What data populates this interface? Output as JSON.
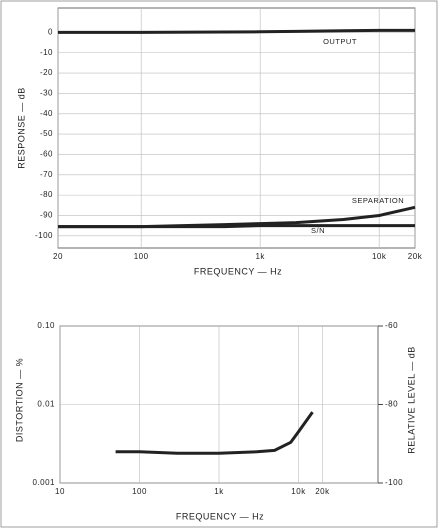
{
  "chart_data": [
    {
      "type": "line",
      "x_label": "FREQUENCY — Hz",
      "y_label": "RESPONSE — dB",
      "x_log": true,
      "xlim": [
        20,
        20000
      ],
      "xticks": [
        20,
        100,
        {
          "value": 1000,
          "label": "1k"
        },
        {
          "value": 10000,
          "label": "10k"
        },
        {
          "value": 20000,
          "label": "20k"
        }
      ],
      "ylim": [
        -106,
        12
      ],
      "yticks": [
        0,
        -10,
        -20,
        -30,
        -40,
        -50,
        -60,
        -70,
        -80,
        -90,
        -100
      ],
      "grid": true,
      "annotations": [
        "OUTPUT",
        "SEPARATION",
        "S/N"
      ],
      "x": [
        20,
        100,
        500,
        1000,
        2000,
        5000,
        10000,
        20000
      ],
      "series": [
        {
          "color": "#222222",
          "values": [
            0,
            0,
            0.2,
            0.3,
            0.5,
            0.8,
            1,
            1
          ]
        },
        {
          "color": "#222222",
          "values": [
            -95.5,
            -95.5,
            -94.5,
            -94,
            -93.5,
            -92,
            -90,
            -86
          ]
        },
        {
          "color": "#222222",
          "values": [
            -95.5,
            -95.5,
            -95.5,
            -95,
            -95,
            -95,
            -95,
            -95
          ]
        }
      ]
    },
    {
      "type": "line",
      "x_label": "FREQUENCY — Hz",
      "y_label": "DISTORTION — %",
      "y2_label": "RELATIVE LEVEL — dB",
      "x_log": true,
      "y_log": true,
      "xlim": [
        10,
        100000
      ],
      "xticks": [
        10,
        100,
        {
          "value": 1000,
          "label": "1k"
        },
        {
          "value": 10000,
          "label": "10k"
        },
        {
          "value": 20000,
          "label": "20k"
        }
      ],
      "ylim": [
        0.001,
        0.1
      ],
      "yticks": [
        0.001,
        0.01,
        {
          "value": 0.1,
          "label": "0.10"
        }
      ],
      "y2lim": [
        -100,
        -60
      ],
      "y2ticks": [
        -60,
        -80,
        -100
      ],
      "grid": true,
      "x": [
        50,
        100,
        300,
        1000,
        3000,
        5000,
        8000,
        10000,
        15000
      ],
      "series": [
        {
          "color": "#222222",
          "values": [
            0.0025,
            0.0025,
            0.0024,
            0.0024,
            0.0025,
            0.0026,
            0.0033,
            0.0045,
            0.008
          ]
        }
      ]
    }
  ]
}
